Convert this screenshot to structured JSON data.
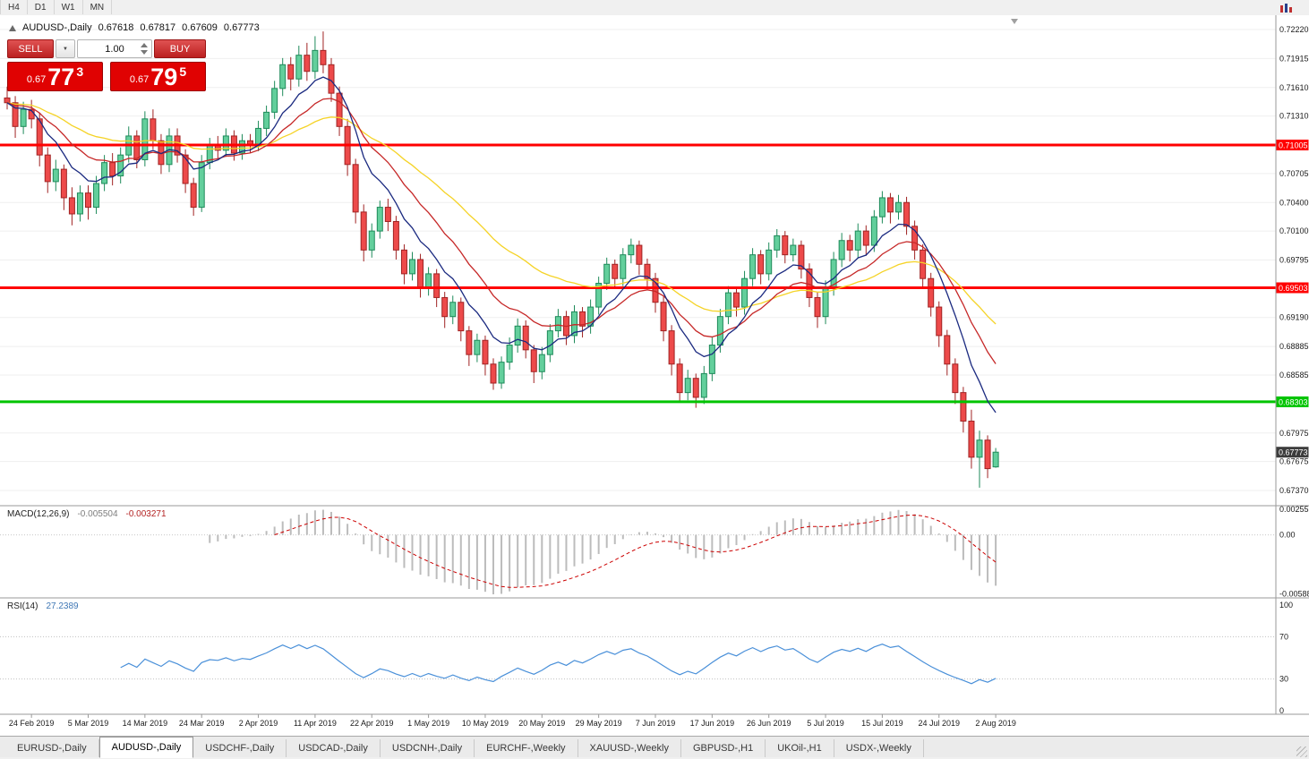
{
  "toolbar": {
    "timeframes": [
      "H4",
      "D1",
      "W1",
      "MN"
    ]
  },
  "chart_title": {
    "symbol": "AUDUSD-,Daily",
    "open": "0.67618",
    "high": "0.67817",
    "low": "0.67609",
    "close": "0.67773"
  },
  "trade_panel": {
    "sell": "SELL",
    "buy": "BUY",
    "volume": "1.00",
    "bid": {
      "prefix": "0.67",
      "big": "77",
      "pip": "3"
    },
    "ask": {
      "prefix": "0.67",
      "big": "79",
      "pip": "5"
    }
  },
  "price_axis": {
    "ticks": [
      "0.72220",
      "0.71915",
      "0.71610",
      "0.71310",
      "0.70705",
      "0.70400",
      "0.70100",
      "0.69795",
      "0.69190",
      "0.68885",
      "0.68585",
      "0.67975",
      "0.67675",
      "0.67370"
    ]
  },
  "levels": [
    {
      "label": "0.71005",
      "price": 0.71005,
      "color": "#FF0000"
    },
    {
      "label": "0.69503",
      "price": 0.69503,
      "color": "#FF0000"
    },
    {
      "label": "0.68303",
      "price": 0.68303,
      "color": "#00C400"
    }
  ],
  "current_price": {
    "label": "0.67773",
    "price": 0.67773
  },
  "date_axis": {
    "ticks": [
      {
        "label": "24 Feb 2019",
        "i": 3
      },
      {
        "label": "5 Mar 2019",
        "i": 10
      },
      {
        "label": "14 Mar 2019",
        "i": 17
      },
      {
        "label": "24 Mar 2019",
        "i": 24
      },
      {
        "label": "2 Apr 2019",
        "i": 31
      },
      {
        "label": "11 Apr 2019",
        "i": 38
      },
      {
        "label": "22 Apr 2019",
        "i": 45
      },
      {
        "label": "1 May 2019",
        "i": 52
      },
      {
        "label": "10 May 2019",
        "i": 59
      },
      {
        "label": "20 May 2019",
        "i": 66
      },
      {
        "label": "29 May 2019",
        "i": 73
      },
      {
        "label": "7 Jun 2019",
        "i": 80
      },
      {
        "label": "17 Jun 2019",
        "i": 87
      },
      {
        "label": "26 Jun 2019",
        "i": 94
      },
      {
        "label": "5 Jul 2019",
        "i": 101
      },
      {
        "label": "15 Jul 2019",
        "i": 108
      },
      {
        "label": "24 Jul 2019",
        "i": 115
      },
      {
        "label": "2 Aug 2019",
        "i": 122
      }
    ]
  },
  "macd_panel": {
    "name": "MACD(12,26,9)",
    "main_value": "-0.005504",
    "signal_value": "-0.003271",
    "axis": [
      {
        "label": "0.002553",
        "v": 0.002553
      },
      {
        "label": "0.00",
        "v": 0
      },
      {
        "label": "-0.005888",
        "v": -0.005888
      }
    ]
  },
  "rsi_panel": {
    "name": "RSI(14)",
    "value": "27.2389",
    "axis": [
      {
        "label": "100",
        "v": 100
      },
      {
        "label": "70",
        "v": 70
      },
      {
        "label": "30",
        "v": 30
      },
      {
        "label": "0",
        "v": 0
      }
    ],
    "levels": [
      70,
      30
    ]
  },
  "tabs": [
    {
      "label": "EURUSD-,Daily"
    },
    {
      "label": "AUDUSD-,Daily",
      "active": true
    },
    {
      "label": "USDCHF-,Daily"
    },
    {
      "label": "USDCAD-,Daily"
    },
    {
      "label": "USDCNH-,Daily"
    },
    {
      "label": "EURCHF-,Weekly"
    },
    {
      "label": "XAUUSD-,Weekly"
    },
    {
      "label": "GBPUSD-,H1"
    },
    {
      "label": "UKOil-,H1"
    },
    {
      "label": "USDX-,Weekly"
    }
  ],
  "colors": {
    "up": "#63cf9c",
    "up_stroke": "#1e8a5a",
    "down": "#ed4a4a",
    "down_stroke": "#a02323",
    "ma_fast": "#1b2a80",
    "ma_mid": "#c62828",
    "ma_slow": "#f5d327",
    "hline_red": "#FF0000",
    "hline_green": "#00C400",
    "macd_hist": "#bcbcbc",
    "macd_signal": "#cc0000",
    "rsi_line": "#4a90d9",
    "price_label_bg": "#3c3c3c",
    "grid": "#efefef",
    "axis_line": "#9a9a9a"
  },
  "chart_data": {
    "type": "candlestick",
    "symbol": "AUDUSD",
    "period": "Daily",
    "ylim": [
      0.6737,
      0.7222
    ],
    "overlays": [
      {
        "type": "ema",
        "period": 34,
        "color_key": "ma_slow"
      },
      {
        "type": "ema",
        "period": 16,
        "color_key": "ma_mid"
      },
      {
        "type": "ema",
        "period": 8,
        "color_key": "ma_fast"
      }
    ],
    "macd": {
      "fast": 12,
      "slow": 26,
      "signal": 9
    },
    "rsi": {
      "period": 14
    },
    "levels": [
      0.71005,
      0.69503,
      0.68303
    ],
    "ohlc": [
      [
        0.715,
        0.7162,
        0.7138,
        0.7145
      ],
      [
        0.7145,
        0.7152,
        0.7108,
        0.712
      ],
      [
        0.712,
        0.7146,
        0.7112,
        0.7138
      ],
      [
        0.7138,
        0.7148,
        0.7118,
        0.7128
      ],
      [
        0.7128,
        0.7134,
        0.7078,
        0.709
      ],
      [
        0.709,
        0.7098,
        0.705,
        0.7062
      ],
      [
        0.7062,
        0.7085,
        0.7052,
        0.7075
      ],
      [
        0.7075,
        0.708,
        0.7032,
        0.7045
      ],
      [
        0.7045,
        0.7056,
        0.7016,
        0.7028
      ],
      [
        0.7028,
        0.7058,
        0.702,
        0.705
      ],
      [
        0.705,
        0.7058,
        0.7022,
        0.7035
      ],
      [
        0.7035,
        0.7068,
        0.7028,
        0.706
      ],
      [
        0.706,
        0.709,
        0.7052,
        0.7082
      ],
      [
        0.7082,
        0.7092,
        0.7058,
        0.7068
      ],
      [
        0.7068,
        0.7098,
        0.706,
        0.709
      ],
      [
        0.709,
        0.712,
        0.7082,
        0.711
      ],
      [
        0.711,
        0.7116,
        0.7076,
        0.7085
      ],
      [
        0.7085,
        0.7136,
        0.7078,
        0.7128
      ],
      [
        0.7128,
        0.7138,
        0.7096,
        0.7105
      ],
      [
        0.7105,
        0.7112,
        0.707,
        0.708
      ],
      [
        0.708,
        0.7118,
        0.7072,
        0.711
      ],
      [
        0.711,
        0.7118,
        0.7082,
        0.709
      ],
      [
        0.709,
        0.7096,
        0.705,
        0.706
      ],
      [
        0.706,
        0.7066,
        0.7026,
        0.7035
      ],
      [
        0.7035,
        0.709,
        0.703,
        0.7082
      ],
      [
        0.7082,
        0.7108,
        0.7075,
        0.71
      ],
      [
        0.71,
        0.711,
        0.7086,
        0.7095
      ],
      [
        0.7095,
        0.7118,
        0.7088,
        0.711
      ],
      [
        0.711,
        0.7116,
        0.7084,
        0.7092
      ],
      [
        0.7092,
        0.7112,
        0.7085,
        0.7105
      ],
      [
        0.7105,
        0.7112,
        0.7092,
        0.71
      ],
      [
        0.71,
        0.7126,
        0.7094,
        0.7118
      ],
      [
        0.7118,
        0.7142,
        0.711,
        0.7135
      ],
      [
        0.7135,
        0.7168,
        0.7128,
        0.716
      ],
      [
        0.716,
        0.7192,
        0.7152,
        0.7185
      ],
      [
        0.7185,
        0.7193,
        0.7158,
        0.717
      ],
      [
        0.717,
        0.7205,
        0.7162,
        0.7195
      ],
      [
        0.7195,
        0.7208,
        0.7168,
        0.7178
      ],
      [
        0.7178,
        0.7215,
        0.717,
        0.72
      ],
      [
        0.72,
        0.722,
        0.7176,
        0.7185
      ],
      [
        0.7185,
        0.7192,
        0.7146,
        0.7155
      ],
      [
        0.7155,
        0.7162,
        0.711,
        0.712
      ],
      [
        0.712,
        0.7128,
        0.7068,
        0.708
      ],
      [
        0.708,
        0.7086,
        0.7018,
        0.703
      ],
      [
        0.703,
        0.7038,
        0.6978,
        0.699
      ],
      [
        0.699,
        0.7018,
        0.6982,
        0.701
      ],
      [
        0.701,
        0.7042,
        0.7002,
        0.7035
      ],
      [
        0.7035,
        0.7044,
        0.701,
        0.702
      ],
      [
        0.702,
        0.7026,
        0.698,
        0.699
      ],
      [
        0.699,
        0.6996,
        0.6954,
        0.6965
      ],
      [
        0.6965,
        0.6988,
        0.6958,
        0.698
      ],
      [
        0.698,
        0.6986,
        0.694,
        0.695
      ],
      [
        0.695,
        0.6972,
        0.6942,
        0.6965
      ],
      [
        0.6965,
        0.697,
        0.693,
        0.694
      ],
      [
        0.694,
        0.6946,
        0.6908,
        0.692
      ],
      [
        0.692,
        0.6942,
        0.6912,
        0.6935
      ],
      [
        0.6935,
        0.694,
        0.6894,
        0.6905
      ],
      [
        0.6905,
        0.691,
        0.6868,
        0.688
      ],
      [
        0.688,
        0.6902,
        0.6872,
        0.6895
      ],
      [
        0.6895,
        0.69,
        0.6858,
        0.687
      ],
      [
        0.687,
        0.6876,
        0.6843,
        0.685
      ],
      [
        0.685,
        0.6878,
        0.6844,
        0.6872
      ],
      [
        0.6872,
        0.6898,
        0.6864,
        0.689
      ],
      [
        0.689,
        0.6918,
        0.6882,
        0.691
      ],
      [
        0.691,
        0.6916,
        0.6876,
        0.6885
      ],
      [
        0.6885,
        0.689,
        0.685,
        0.6862
      ],
      [
        0.6862,
        0.6888,
        0.6854,
        0.688
      ],
      [
        0.688,
        0.6912,
        0.6872,
        0.6905
      ],
      [
        0.6905,
        0.6928,
        0.6898,
        0.692
      ],
      [
        0.692,
        0.6926,
        0.689,
        0.69
      ],
      [
        0.69,
        0.6932,
        0.6892,
        0.6925
      ],
      [
        0.6925,
        0.693,
        0.6898,
        0.691
      ],
      [
        0.691,
        0.6938,
        0.6902,
        0.693
      ],
      [
        0.693,
        0.6962,
        0.6922,
        0.6955
      ],
      [
        0.6955,
        0.6982,
        0.6948,
        0.6975
      ],
      [
        0.6975,
        0.698,
        0.695,
        0.696
      ],
      [
        0.696,
        0.6992,
        0.6952,
        0.6985
      ],
      [
        0.6985,
        0.7002,
        0.6976,
        0.6995
      ],
      [
        0.6995,
        0.7,
        0.6964,
        0.6975
      ],
      [
        0.6975,
        0.6981,
        0.695,
        0.696
      ],
      [
        0.696,
        0.6966,
        0.6924,
        0.6935
      ],
      [
        0.6935,
        0.6941,
        0.6894,
        0.6905
      ],
      [
        0.6905,
        0.6911,
        0.6858,
        0.687
      ],
      [
        0.687,
        0.6876,
        0.683,
        0.684
      ],
      [
        0.684,
        0.6864,
        0.6832,
        0.6855
      ],
      [
        0.6855,
        0.686,
        0.6824,
        0.6835
      ],
      [
        0.6835,
        0.6868,
        0.6828,
        0.686
      ],
      [
        0.686,
        0.6898,
        0.6852,
        0.689
      ],
      [
        0.689,
        0.6928,
        0.6882,
        0.692
      ],
      [
        0.692,
        0.6952,
        0.6912,
        0.6945
      ],
      [
        0.6945,
        0.695,
        0.692,
        0.693
      ],
      [
        0.693,
        0.6968,
        0.6922,
        0.696
      ],
      [
        0.696,
        0.6992,
        0.6952,
        0.6985
      ],
      [
        0.6985,
        0.699,
        0.6954,
        0.6965
      ],
      [
        0.6965,
        0.6998,
        0.6958,
        0.699
      ],
      [
        0.699,
        0.7012,
        0.6982,
        0.7005
      ],
      [
        0.7005,
        0.701,
        0.6976,
        0.6985
      ],
      [
        0.6985,
        0.7002,
        0.6978,
        0.6995
      ],
      [
        0.6995,
        0.7,
        0.696,
        0.697
      ],
      [
        0.697,
        0.6976,
        0.693,
        0.694
      ],
      [
        0.694,
        0.6946,
        0.6908,
        0.692
      ],
      [
        0.692,
        0.6958,
        0.6912,
        0.695
      ],
      [
        0.695,
        0.6988,
        0.6942,
        0.698
      ],
      [
        0.698,
        0.7008,
        0.6972,
        0.7
      ],
      [
        0.7,
        0.7006,
        0.6978,
        0.699
      ],
      [
        0.699,
        0.7018,
        0.6982,
        0.701
      ],
      [
        0.701,
        0.7016,
        0.6984,
        0.6995
      ],
      [
        0.6995,
        0.7032,
        0.6988,
        0.7025
      ],
      [
        0.7025,
        0.7052,
        0.7018,
        0.7045
      ],
      [
        0.7045,
        0.705,
        0.7018,
        0.703
      ],
      [
        0.703,
        0.7048,
        0.7022,
        0.704
      ],
      [
        0.704,
        0.7046,
        0.7006,
        0.7015
      ],
      [
        0.7015,
        0.7021,
        0.698,
        0.699
      ],
      [
        0.699,
        0.6996,
        0.695,
        0.696
      ],
      [
        0.696,
        0.6966,
        0.692,
        0.693
      ],
      [
        0.693,
        0.6936,
        0.6888,
        0.69
      ],
      [
        0.69,
        0.6906,
        0.6858,
        0.687
      ],
      [
        0.687,
        0.6876,
        0.6828,
        0.684
      ],
      [
        0.684,
        0.6846,
        0.6798,
        0.681
      ],
      [
        0.681,
        0.6822,
        0.676,
        0.6772
      ],
      [
        0.6772,
        0.68,
        0.674,
        0.679
      ],
      [
        0.679,
        0.6795,
        0.675,
        0.676
      ],
      [
        0.67618,
        0.67817,
        0.67609,
        0.67773
      ]
    ]
  }
}
